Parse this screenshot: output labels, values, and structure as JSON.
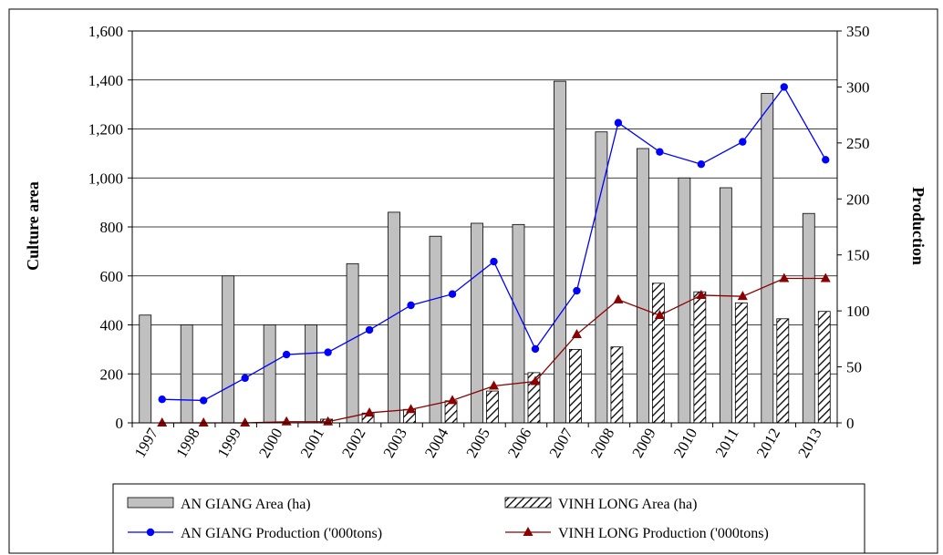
{
  "chart_data": {
    "type": "bar",
    "categories": [
      "1997",
      "1998",
      "1999",
      "2000",
      "2001",
      "2002",
      "2003",
      "2004",
      "2005",
      "2006",
      "2007",
      "2008",
      "2009",
      "2010",
      "2011",
      "2012",
      "2013"
    ],
    "ylabel": "Culture area",
    "y2label": "Production",
    "ylim": [
      0,
      1600
    ],
    "y2lim": [
      0,
      350
    ],
    "yticks": [
      "0",
      "200",
      "400",
      "600",
      "800",
      "1,000",
      "1,200",
      "1,400",
      "1,600"
    ],
    "y2ticks": [
      "0",
      "50",
      "100",
      "150",
      "200",
      "250",
      "300",
      "350"
    ],
    "grid": true,
    "legend_position": "bottom",
    "series": [
      {
        "name": "AN GIANG Area (ha)",
        "kind": "bar",
        "axis": "left",
        "pattern": "solid-gray",
        "color": "#c0c0c0",
        "values": [
          440,
          400,
          600,
          400,
          400,
          650,
          860,
          762,
          815,
          810,
          1395,
          1188,
          1120,
          1000,
          960,
          1345,
          855
        ]
      },
      {
        "name": "VINH LONG Area (ha)",
        "kind": "bar",
        "axis": "left",
        "pattern": "diagonal-hatch",
        "color": "#000000",
        "values": [
          0,
          0,
          0,
          0,
          15,
          40,
          55,
          90,
          130,
          205,
          300,
          310,
          570,
          535,
          490,
          425,
          455
        ]
      },
      {
        "name": "AN GIANG Production ('000tons)",
        "kind": "line",
        "axis": "right",
        "marker": "circle",
        "color": "#0000ff",
        "values": [
          21,
          20,
          40,
          61,
          63,
          83,
          105,
          115,
          144,
          66,
          118,
          268,
          242,
          231,
          251,
          300,
          235
        ]
      },
      {
        "name": "VINH LONG Production ('000tons)",
        "kind": "line",
        "axis": "right",
        "marker": "triangle",
        "color": "#8b0000",
        "values": [
          0,
          0,
          0,
          1,
          1,
          9,
          12,
          20,
          33,
          37,
          79,
          110,
          96,
          114,
          113,
          129,
          129
        ]
      }
    ]
  }
}
